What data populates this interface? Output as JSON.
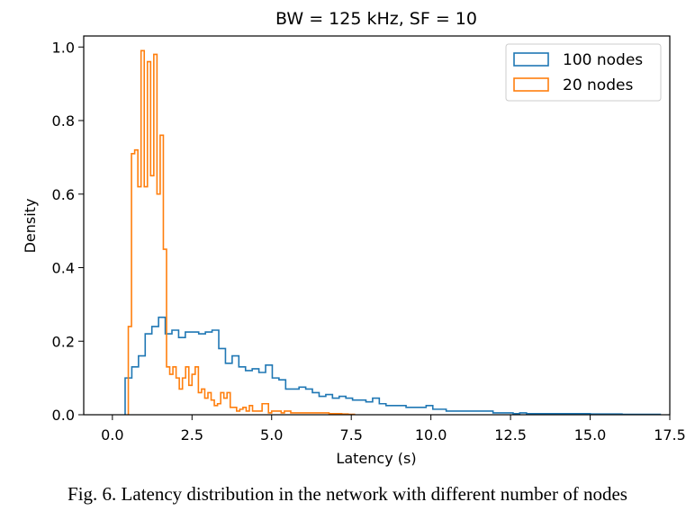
{
  "caption": "Fig. 6. Latency distribution in the network with different number of nodes",
  "chart_data": {
    "type": "histogram",
    "title": "BW = 125 kHz, SF = 10",
    "xlabel": "Latency (s)",
    "ylabel": "Density",
    "xlim": [
      -0.9,
      17.5
    ],
    "ylim": [
      0.0,
      1.03
    ],
    "x_ticks": [
      0.0,
      2.5,
      5.0,
      7.5,
      10.0,
      12.5,
      15.0,
      17.5
    ],
    "x_tick_labels": [
      "0.0",
      "2.5",
      "5.0",
      "7.5",
      "10.0",
      "12.5",
      "15.0",
      "17.5"
    ],
    "y_ticks": [
      0.0,
      0.2,
      0.4,
      0.6,
      0.8,
      1.0
    ],
    "y_tick_labels": [
      "0.0",
      "0.2",
      "0.4",
      "0.6",
      "0.8",
      "1.0"
    ],
    "grid": false,
    "legend_position": "top-right",
    "series": [
      {
        "name": "100 nodes",
        "color": "#1f77b4",
        "bin_edges": [
          0.4,
          0.61,
          0.82,
          1.03,
          1.24,
          1.45,
          1.66,
          1.87,
          2.08,
          2.29,
          2.5,
          2.71,
          2.92,
          3.13,
          3.34,
          3.55,
          3.76,
          3.97,
          4.18,
          4.39,
          4.6,
          4.81,
          5.02,
          5.23,
          5.44,
          5.65,
          5.86,
          6.07,
          6.28,
          6.49,
          6.7,
          6.91,
          7.12,
          7.33,
          7.54,
          7.75,
          7.96,
          8.17,
          8.38,
          8.59,
          8.8,
          9.01,
          9.22,
          9.43,
          9.64,
          9.85,
          10.06,
          10.27,
          10.48,
          10.69,
          10.9,
          11.11,
          11.32,
          11.53,
          11.74,
          11.95,
          12.16,
          12.37,
          12.58,
          12.79,
          13.0,
          13.5,
          14.0,
          14.5,
          15.0,
          15.5,
          16.0,
          16.5,
          17.2
        ],
        "values": [
          0.1,
          0.13,
          0.16,
          0.22,
          0.24,
          0.265,
          0.22,
          0.23,
          0.21,
          0.225,
          0.225,
          0.22,
          0.225,
          0.23,
          0.18,
          0.14,
          0.16,
          0.13,
          0.12,
          0.125,
          0.115,
          0.135,
          0.1,
          0.095,
          0.07,
          0.07,
          0.075,
          0.07,
          0.06,
          0.05,
          0.055,
          0.045,
          0.05,
          0.045,
          0.04,
          0.04,
          0.035,
          0.045,
          0.03,
          0.025,
          0.025,
          0.025,
          0.02,
          0.02,
          0.02,
          0.025,
          0.015,
          0.015,
          0.01,
          0.01,
          0.01,
          0.01,
          0.01,
          0.01,
          0.01,
          0.005,
          0.005,
          0.005,
          0.003,
          0.005,
          0.003,
          0.003,
          0.003,
          0.003,
          0.002,
          0.002,
          0.001,
          0.001
        ]
      },
      {
        "name": "20 nodes",
        "color": "#ff7f0e",
        "bin_edges": [
          0.5,
          0.6,
          0.7,
          0.8,
          0.9,
          1.0,
          1.1,
          1.2,
          1.3,
          1.4,
          1.5,
          1.6,
          1.7,
          1.8,
          1.9,
          2.0,
          2.1,
          2.2,
          2.3,
          2.4,
          2.5,
          2.6,
          2.7,
          2.8,
          2.9,
          3.0,
          3.1,
          3.2,
          3.3,
          3.4,
          3.5,
          3.6,
          3.7,
          3.8,
          3.9,
          4.0,
          4.1,
          4.2,
          4.3,
          4.4,
          4.5,
          4.6,
          4.7,
          4.8,
          4.9,
          5.0,
          5.1,
          5.2,
          5.3,
          5.4,
          5.5,
          5.6,
          5.7,
          5.8,
          5.9,
          6.0,
          6.2,
          6.4,
          6.6,
          6.8,
          7.0,
          7.2,
          7.4,
          7.6
        ],
        "values": [
          0.24,
          0.71,
          0.72,
          0.62,
          0.99,
          0.62,
          0.96,
          0.65,
          0.98,
          0.6,
          0.76,
          0.45,
          0.13,
          0.11,
          0.13,
          0.1,
          0.07,
          0.1,
          0.13,
          0.08,
          0.11,
          0.13,
          0.06,
          0.07,
          0.045,
          0.06,
          0.04,
          0.025,
          0.03,
          0.06,
          0.045,
          0.06,
          0.02,
          0.02,
          0.01,
          0.015,
          0.02,
          0.01,
          0.025,
          0.01,
          0.01,
          0.01,
          0.03,
          0.03,
          0.005,
          0.01,
          0.01,
          0.01,
          0.005,
          0.01,
          0.01,
          0.005,
          0.005,
          0.005,
          0.005,
          0.005,
          0.005,
          0.005,
          0.005,
          0.003,
          0.003,
          0.002,
          0.001
        ]
      }
    ]
  }
}
